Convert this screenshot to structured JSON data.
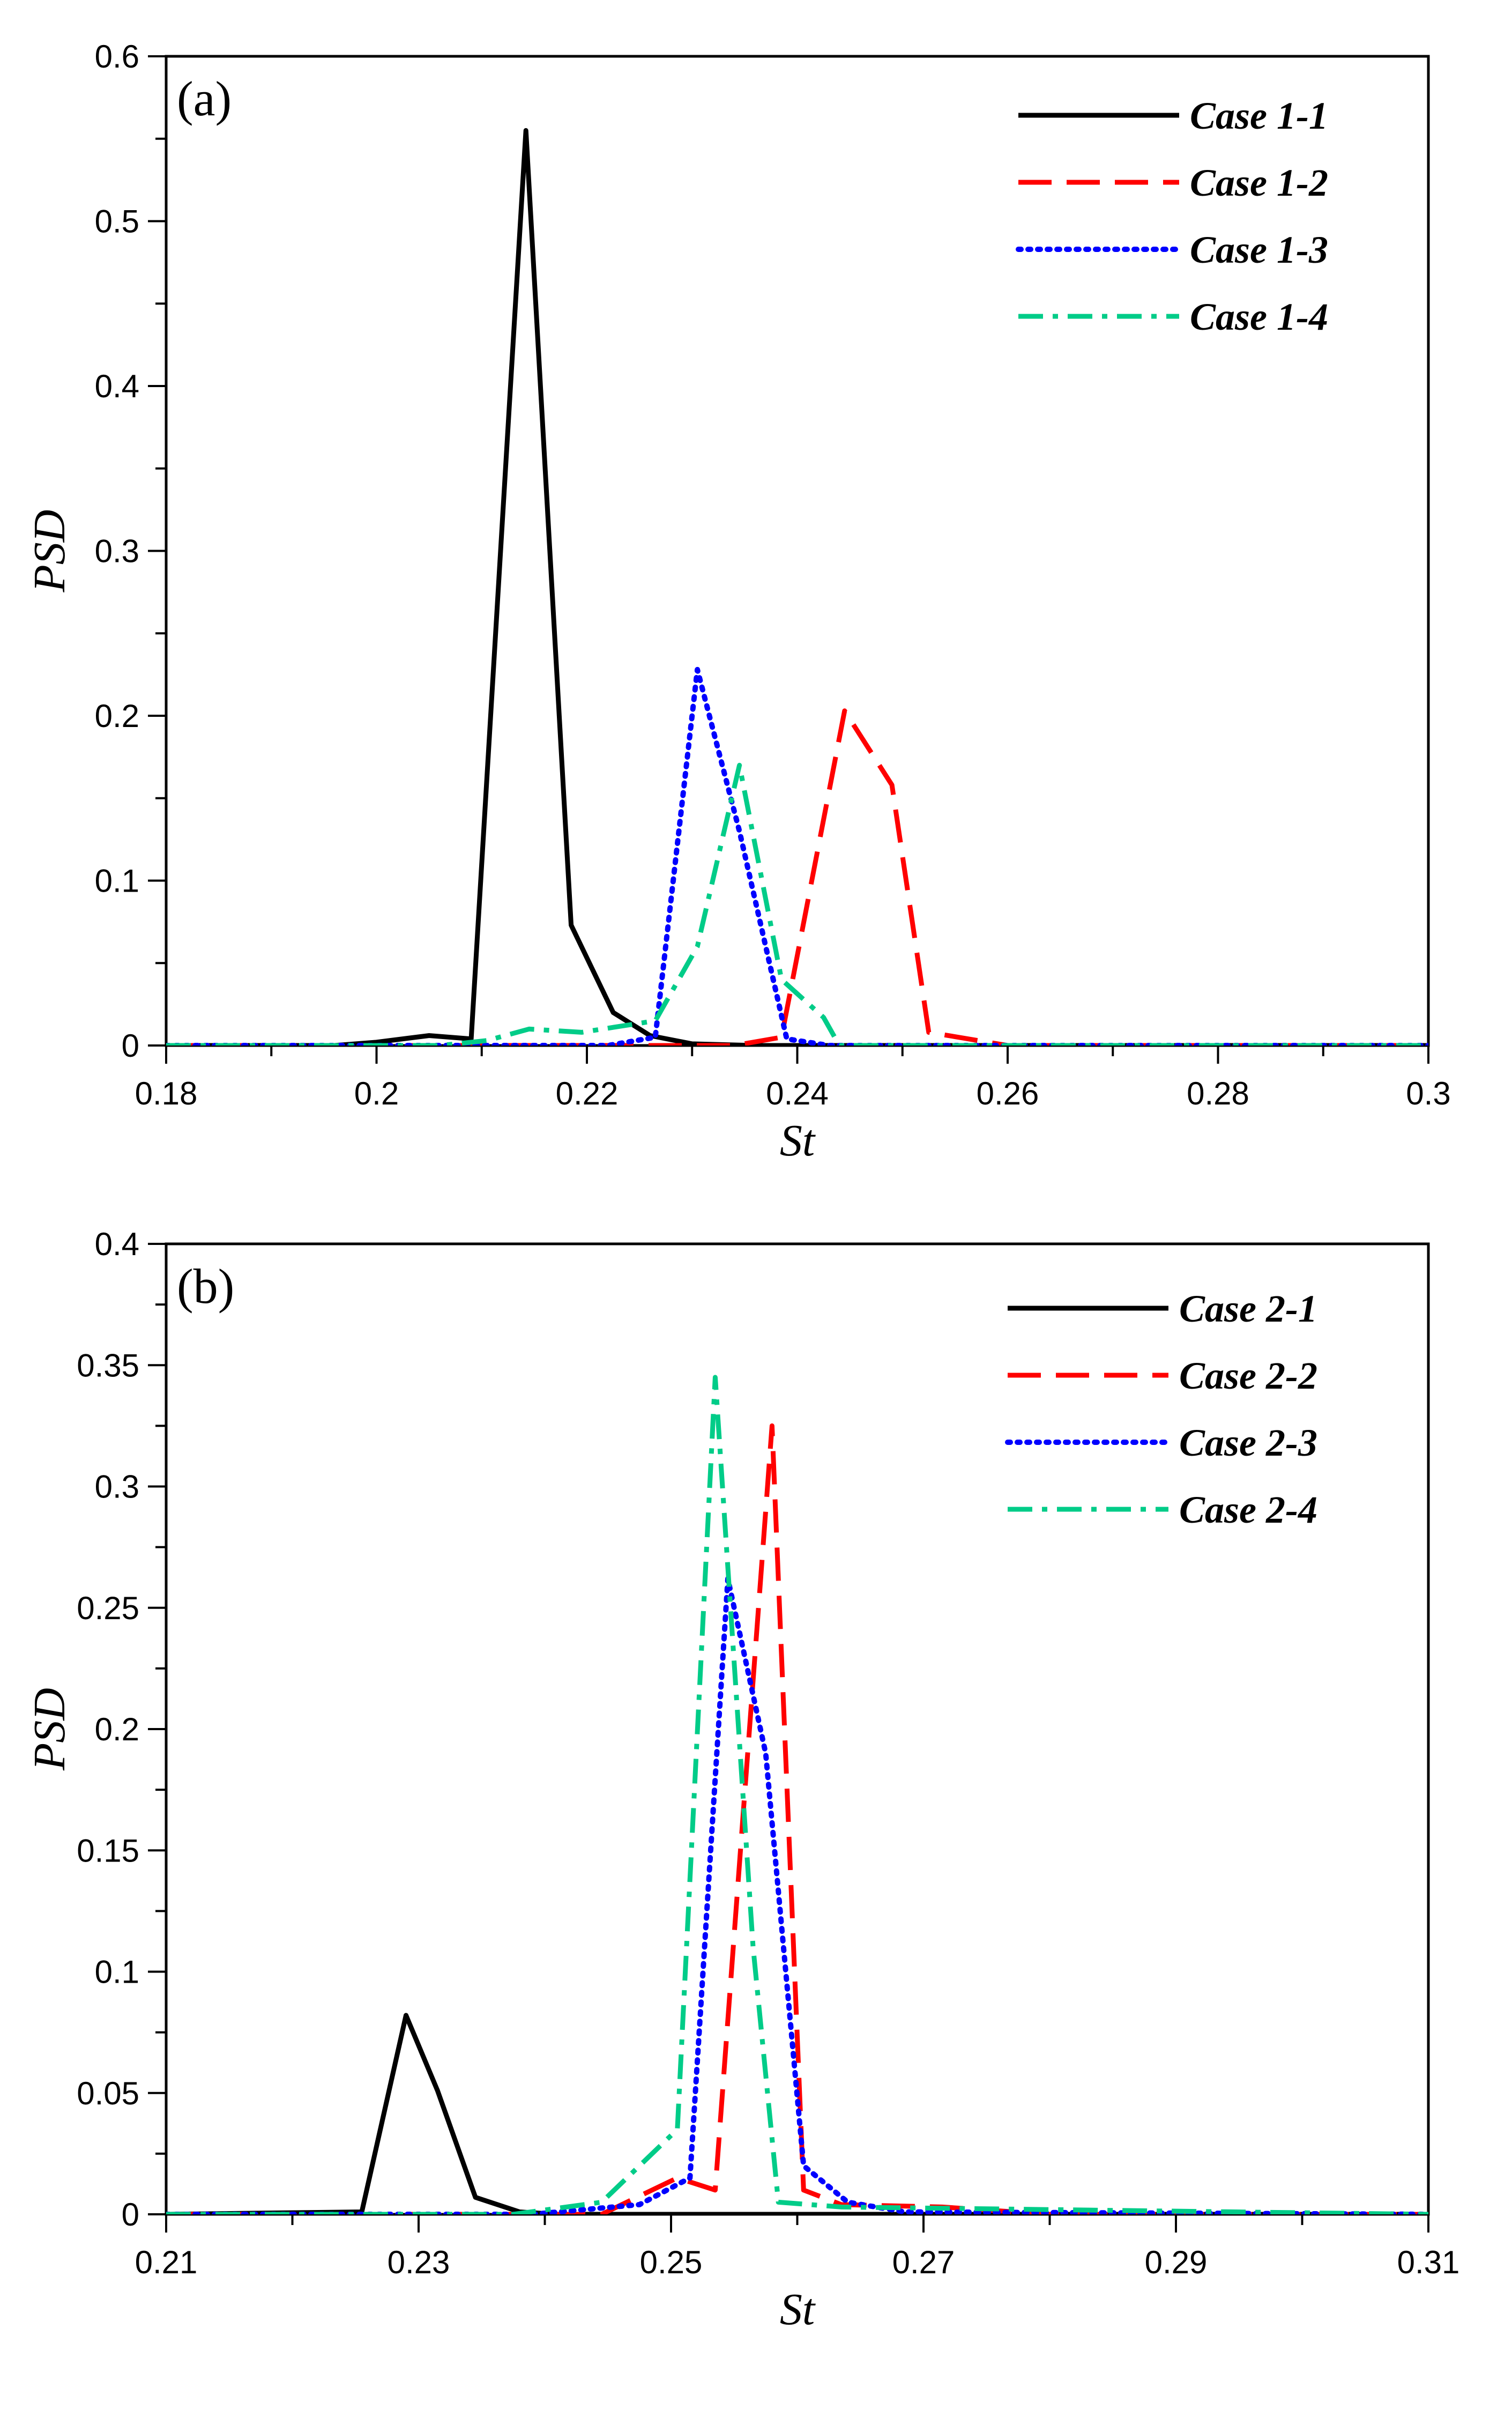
{
  "chart_data": [
    {
      "type": "line",
      "panel_label": "(a)",
      "xlabel": "St",
      "ylabel": "PSD",
      "xlim": [
        0.18,
        0.3
      ],
      "ylim": [
        0,
        0.6
      ],
      "xticks": [
        0.18,
        0.2,
        0.22,
        0.24,
        0.26,
        0.28,
        0.3
      ],
      "xtick_labels": [
        "0.18",
        "0.2",
        "0.22",
        "0.24",
        "0.26",
        "0.28",
        "0.3"
      ],
      "yticks": [
        0,
        0.1,
        0.2,
        0.3,
        0.4,
        0.5,
        0.6
      ],
      "ytick_labels": [
        "0",
        "0.1",
        "0.2",
        "0.3",
        "0.4",
        "0.5",
        "0.6"
      ],
      "legend_position": "top-right",
      "series": [
        {
          "name": "Case 1-1",
          "color": "#000000",
          "dash": "solid",
          "x": [
            0.18,
            0.196,
            0.2,
            0.205,
            0.209,
            0.2142,
            0.2185,
            0.2225,
            0.226,
            0.23,
            0.236,
            0.24,
            0.3
          ],
          "y": [
            0,
            0,
            0.002,
            0.006,
            0.004,
            0.555,
            0.073,
            0.02,
            0.006,
            0.001,
            0,
            0,
            0
          ]
        },
        {
          "name": "Case 1-2",
          "color": "#ff0000",
          "dash": "long-dash",
          "x": [
            0.18,
            0.234,
            0.2385,
            0.2445,
            0.249,
            0.2525,
            0.26,
            0.3
          ],
          "y": [
            0,
            0,
            0.005,
            0.203,
            0.158,
            0.008,
            0,
            0
          ]
        },
        {
          "name": "Case 1-3",
          "color": "#0000ff",
          "dash": "dotted",
          "x": [
            0.18,
            0.222,
            0.2265,
            0.2305,
            0.2345,
            0.239,
            0.243,
            0.3
          ],
          "y": [
            0,
            0,
            0.005,
            0.228,
            0.13,
            0.004,
            0,
            0
          ]
        },
        {
          "name": "Case 1-4",
          "color": "#00cc88",
          "dash": "dash-dot",
          "x": [
            0.18,
            0.206,
            0.2105,
            0.2145,
            0.2195,
            0.2265,
            0.2305,
            0.2345,
            0.2385,
            0.2425,
            0.244,
            0.3
          ],
          "y": [
            0,
            0,
            0.003,
            0.01,
            0.008,
            0.015,
            0.06,
            0.17,
            0.04,
            0.017,
            0,
            0
          ]
        }
      ]
    },
    {
      "type": "line",
      "panel_label": "(b)",
      "xlabel": "St",
      "ylabel": "PSD",
      "xlim": [
        0.21,
        0.31
      ],
      "ylim": [
        0,
        0.4
      ],
      "xticks": [
        0.21,
        0.23,
        0.25,
        0.27,
        0.29,
        0.31
      ],
      "xtick_labels": [
        "0.21",
        "0.23",
        "0.25",
        "0.27",
        "0.29",
        "0.31"
      ],
      "yticks": [
        0,
        0.05,
        0.1,
        0.15,
        0.2,
        0.25,
        0.3,
        0.35,
        0.4
      ],
      "ytick_labels": [
        "0",
        "0.05",
        "0.1",
        "0.15",
        "0.2",
        "0.25",
        "0.3",
        "0.35",
        "0.4"
      ],
      "legend_position": "top-right",
      "series": [
        {
          "name": "Case 2-1",
          "color": "#000000",
          "dash": "solid",
          "x": [
            0.21,
            0.2255,
            0.229,
            0.2315,
            0.2345,
            0.238,
            0.241,
            0.31
          ],
          "y": [
            0,
            0.001,
            0.082,
            0.051,
            0.007,
            0.001,
            0,
            0
          ]
        },
        {
          "name": "Case 2-2",
          "color": "#ff0000",
          "dash": "long-dash",
          "x": [
            0.21,
            0.2445,
            0.2505,
            0.2535,
            0.258,
            0.2605,
            0.2635,
            0.2715,
            0.28,
            0.31
          ],
          "y": [
            0,
            0,
            0.015,
            0.01,
            0.325,
            0.01,
            0.004,
            0.003,
            0,
            0
          ]
        },
        {
          "name": "Case 2-3",
          "color": "#0000ff",
          "dash": "dotted",
          "x": [
            0.21,
            0.239,
            0.2475,
            0.2515,
            0.2545,
            0.2575,
            0.2605,
            0.264,
            0.2685,
            0.31
          ],
          "y": [
            0,
            0,
            0.004,
            0.015,
            0.262,
            0.19,
            0.02,
            0.005,
            0.001,
            0
          ]
        },
        {
          "name": "Case 2-4",
          "color": "#00cc88",
          "dash": "dash-dot",
          "x": [
            0.21,
            0.2375,
            0.2445,
            0.2505,
            0.2535,
            0.2565,
            0.2585,
            0.2635,
            0.31
          ],
          "y": [
            0,
            0,
            0.005,
            0.035,
            0.345,
            0.11,
            0.005,
            0.003,
            0
          ]
        }
      ]
    }
  ]
}
